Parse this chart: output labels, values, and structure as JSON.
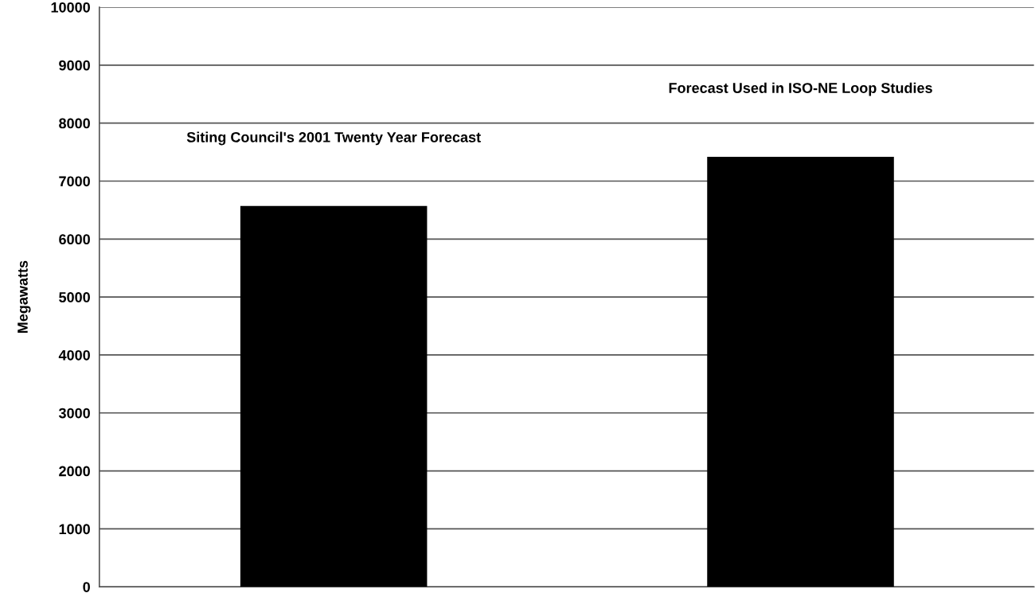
{
  "chart_data": {
    "type": "bar",
    "ylabel": "Megawatts",
    "categories": [
      "Siting Council's 2001 Twenty Year Forecast",
      "Forecast Used in ISO-NE Loop Studies"
    ],
    "values": [
      6570,
      7420
    ],
    "color": "#000000",
    "ylim": [
      0,
      10000
    ],
    "yticks": [
      0,
      1000,
      2000,
      3000,
      4000,
      5000,
      6000,
      7000,
      8000,
      9000,
      10000
    ],
    "grid": "y"
  }
}
